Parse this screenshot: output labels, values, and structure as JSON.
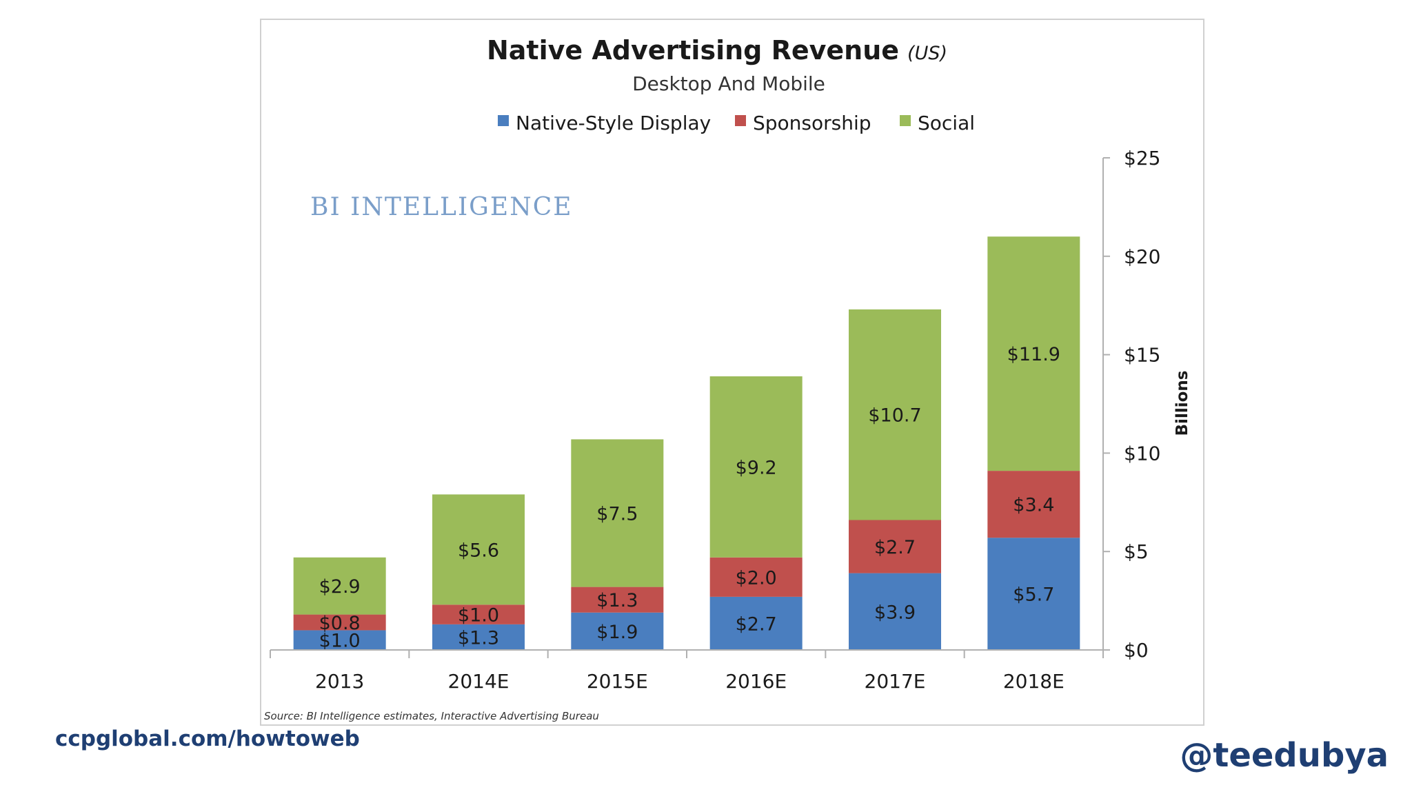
{
  "chart_data": {
    "type": "bar",
    "stacked": true,
    "title": "Native Advertising Revenue",
    "title_suffix": "(US)",
    "subtitle": "Desktop And Mobile",
    "categories": [
      "2013",
      "2014E",
      "2015E",
      "2016E",
      "2017E",
      "2018E"
    ],
    "series": [
      {
        "name": "Native-Style Display",
        "color": "#4a7ebf",
        "values": [
          1.0,
          1.3,
          1.9,
          2.7,
          3.9,
          5.7
        ],
        "labels": [
          "$1.0",
          "$1.3",
          "$1.9",
          "$2.7",
          "$3.9",
          "$5.7"
        ]
      },
      {
        "name": "Sponsorship",
        "color": "#c0504d",
        "values": [
          0.8,
          1.0,
          1.3,
          2.0,
          2.7,
          3.4
        ],
        "labels": [
          "$0.8",
          "$1.0",
          "$1.3",
          "$2.0",
          "$2.7",
          "$3.4"
        ]
      },
      {
        "name": "Social",
        "color": "#9bbb59",
        "values": [
          2.9,
          5.6,
          7.5,
          9.2,
          10.7,
          11.9
        ],
        "labels": [
          "$2.9",
          "$5.6",
          "$7.5",
          "$9.2",
          "$10.7",
          "$11.9"
        ]
      }
    ],
    "ylabel": "Billions",
    "ylim": [
      0,
      25
    ],
    "yticks": [
      0,
      5,
      10,
      15,
      20,
      25
    ],
    "ytick_labels": [
      "$0",
      "$5",
      "$10",
      "$15",
      "$20",
      "$25"
    ],
    "y_axis_side": "right",
    "legend_position": "top-center",
    "grid": false,
    "watermark": "BI INTELLIGENCE",
    "source": "Source: BI Intelligence estimates, Interactive Advertising Bureau"
  },
  "footer": {
    "website": "ccpglobal.com/howtoweb",
    "handle": "@teedubya"
  }
}
